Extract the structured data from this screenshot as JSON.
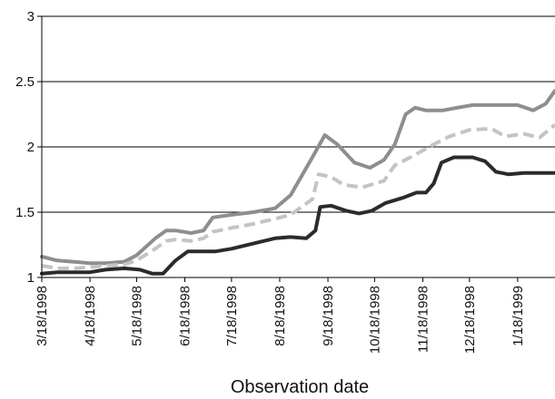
{
  "chart_data": {
    "type": "line",
    "title": "",
    "xlabel": "Observation date",
    "ylabel": "",
    "x_range": [
      "1998-03-18",
      "1999-02-11"
    ],
    "ylim": [
      1,
      3
    ],
    "y_ticks": [
      "1",
      "1.5",
      "2",
      "2.5",
      "3"
    ],
    "x_ticks": [
      "3/18/1998",
      "4/18/1998",
      "5/18/1998",
      "6/18/1998",
      "7/18/1998",
      "8/18/1998",
      "9/18/1998",
      "10/18/1998",
      "11/18/1998",
      "12/18/1998",
      "1/18/1999"
    ],
    "grid": "horizontal",
    "legend": "none",
    "series": [
      {
        "color": "#8e8e8e",
        "dash": "solid",
        "points": [
          [
            "1998-03-18",
            1.16
          ],
          [
            "1998-03-28",
            1.13
          ],
          [
            "1998-04-08",
            1.12
          ],
          [
            "1998-04-18",
            1.11
          ],
          [
            "1998-04-28",
            1.11
          ],
          [
            "1998-05-10",
            1.12
          ],
          [
            "1998-05-18",
            1.17
          ],
          [
            "1998-05-30",
            1.3
          ],
          [
            "1998-06-06",
            1.36
          ],
          [
            "1998-06-12",
            1.36
          ],
          [
            "1998-06-22",
            1.34
          ],
          [
            "1998-06-30",
            1.36
          ],
          [
            "1998-07-06",
            1.46
          ],
          [
            "1998-07-18",
            1.48
          ],
          [
            "1998-08-01",
            1.5
          ],
          [
            "1998-08-15",
            1.53
          ],
          [
            "1998-08-25",
            1.63
          ],
          [
            "1998-09-08",
            1.92
          ],
          [
            "1998-09-16",
            2.09
          ],
          [
            "1998-09-24",
            2.02
          ],
          [
            "1998-10-05",
            1.88
          ],
          [
            "1998-10-15",
            1.84
          ],
          [
            "1998-10-24",
            1.9
          ],
          [
            "1998-10-31",
            2.02
          ],
          [
            "1998-11-07",
            2.25
          ],
          [
            "1998-11-13",
            2.3
          ],
          [
            "1998-11-20",
            2.28
          ],
          [
            "1998-12-01",
            2.28
          ],
          [
            "1998-12-10",
            2.3
          ],
          [
            "1998-12-20",
            2.32
          ],
          [
            "1999-01-05",
            2.32
          ],
          [
            "1999-01-18",
            2.32
          ],
          [
            "1999-01-28",
            2.28
          ],
          [
            "1999-02-05",
            2.33
          ],
          [
            "1999-02-11",
            2.43
          ]
        ]
      },
      {
        "color": "#c4c4c4",
        "dash": "dashed",
        "points": [
          [
            "1998-03-18",
            1.09
          ],
          [
            "1998-03-28",
            1.07
          ],
          [
            "1998-04-08",
            1.07
          ],
          [
            "1998-04-18",
            1.08
          ],
          [
            "1998-04-28",
            1.09
          ],
          [
            "1998-05-10",
            1.1
          ],
          [
            "1998-05-18",
            1.13
          ],
          [
            "1998-05-30",
            1.22
          ],
          [
            "1998-06-06",
            1.28
          ],
          [
            "1998-06-12",
            1.29
          ],
          [
            "1998-06-22",
            1.28
          ],
          [
            "1998-06-30",
            1.3
          ],
          [
            "1998-07-06",
            1.35
          ],
          [
            "1998-07-18",
            1.38
          ],
          [
            "1998-08-01",
            1.41
          ],
          [
            "1998-08-15",
            1.45
          ],
          [
            "1998-08-25",
            1.48
          ],
          [
            "1998-09-08",
            1.6
          ],
          [
            "1998-09-12",
            1.79
          ],
          [
            "1998-09-20",
            1.77
          ],
          [
            "1998-09-28",
            1.71
          ],
          [
            "1998-10-10",
            1.69
          ],
          [
            "1998-10-24",
            1.74
          ],
          [
            "1998-10-31",
            1.86
          ],
          [
            "1998-11-10",
            1.92
          ],
          [
            "1998-11-22",
            2.0
          ],
          [
            "1998-12-05",
            2.08
          ],
          [
            "1998-12-18",
            2.13
          ],
          [
            "1999-01-01",
            2.14
          ],
          [
            "1999-01-10",
            2.08
          ],
          [
            "1999-01-22",
            2.1
          ],
          [
            "1999-02-01",
            2.07
          ],
          [
            "1999-02-11",
            2.17
          ]
        ]
      },
      {
        "color": "#2b2b2b",
        "dash": "solid",
        "points": [
          [
            "1998-03-18",
            1.03
          ],
          [
            "1998-03-28",
            1.04
          ],
          [
            "1998-04-08",
            1.04
          ],
          [
            "1998-04-18",
            1.04
          ],
          [
            "1998-04-28",
            1.06
          ],
          [
            "1998-05-10",
            1.07
          ],
          [
            "1998-05-20",
            1.06
          ],
          [
            "1998-05-28",
            1.03
          ],
          [
            "1998-06-04",
            1.03
          ],
          [
            "1998-06-12",
            1.13
          ],
          [
            "1998-06-20",
            1.2
          ],
          [
            "1998-06-28",
            1.2
          ],
          [
            "1998-07-08",
            1.2
          ],
          [
            "1998-07-18",
            1.22
          ],
          [
            "1998-08-01",
            1.26
          ],
          [
            "1998-08-15",
            1.3
          ],
          [
            "1998-08-25",
            1.31
          ],
          [
            "1998-09-04",
            1.3
          ],
          [
            "1998-09-10",
            1.36
          ],
          [
            "1998-09-13",
            1.54
          ],
          [
            "1998-09-20",
            1.55
          ],
          [
            "1998-09-30",
            1.51
          ],
          [
            "1998-10-08",
            1.49
          ],
          [
            "1998-10-16",
            1.51
          ],
          [
            "1998-10-25",
            1.57
          ],
          [
            "1998-11-05",
            1.61
          ],
          [
            "1998-11-14",
            1.65
          ],
          [
            "1998-11-20",
            1.65
          ],
          [
            "1998-11-25",
            1.72
          ],
          [
            "1998-11-30",
            1.88
          ],
          [
            "1998-12-08",
            1.92
          ],
          [
            "1998-12-20",
            1.92
          ],
          [
            "1998-12-28",
            1.89
          ],
          [
            "1999-01-04",
            1.81
          ],
          [
            "1999-01-12",
            1.79
          ],
          [
            "1999-01-22",
            1.8
          ],
          [
            "1999-02-11",
            1.8
          ]
        ]
      }
    ]
  }
}
